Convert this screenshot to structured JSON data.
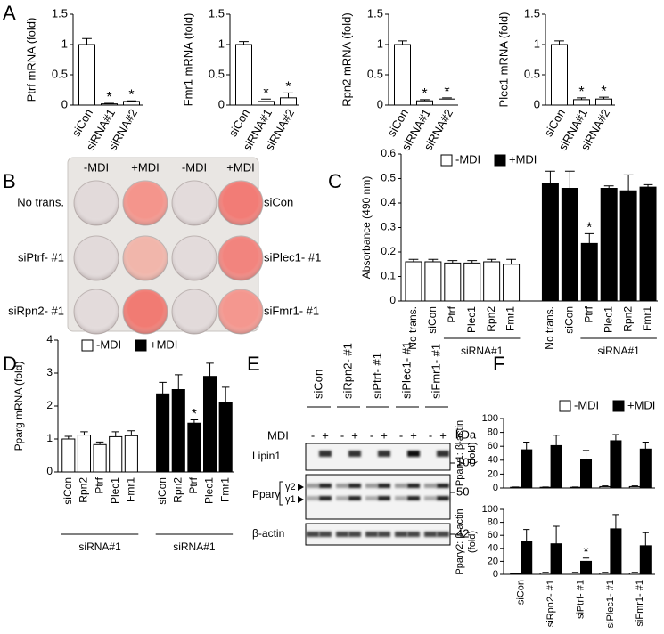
{
  "panel_labels": [
    "A",
    "B",
    "C",
    "D",
    "E",
    "F"
  ],
  "chart_data": [
    {
      "type": "bar",
      "ylabel": "Ptrf mRNA (fold)",
      "categories": [
        "siCon",
        "siRNA#1",
        "siRNA#2"
      ],
      "series": [
        {
          "color": "#ffffff",
          "values": [
            1,
            0.02,
            0.06
          ],
          "errors": [
            0.1,
            0.01,
            0.01
          ],
          "annotations": [
            null,
            "*",
            "*"
          ]
        }
      ],
      "ylim": [
        0,
        1.5
      ],
      "yticks": [
        0,
        0.5,
        1,
        1.5
      ]
    },
    {
      "type": "bar",
      "ylabel": "Fmr1 mRNA (fold)",
      "categories": [
        "siCon",
        "siRNA#1",
        "siRNA#2"
      ],
      "series": [
        {
          "color": "#ffffff",
          "values": [
            1,
            0.06,
            0.12
          ],
          "errors": [
            0.05,
            0.04,
            0.08
          ],
          "annotations": [
            null,
            "*",
            "*"
          ]
        }
      ],
      "ylim": [
        0,
        1.5
      ],
      "yticks": [
        0,
        0.5,
        1,
        1.5
      ]
    },
    {
      "type": "bar",
      "ylabel": "Rpn2 mRNA (fold)",
      "categories": [
        "siCon",
        "siRNA#1",
        "siRNA#2"
      ],
      "series": [
        {
          "color": "#ffffff",
          "values": [
            1,
            0.07,
            0.1
          ],
          "errors": [
            0.06,
            0.02,
            0.02
          ],
          "annotations": [
            null,
            "*",
            "*"
          ]
        }
      ],
      "ylim": [
        0,
        1.5
      ],
      "yticks": [
        0,
        0.5,
        1,
        1.5
      ]
    },
    {
      "type": "bar",
      "ylabel": "Plec1 mRNA (fold)",
      "categories": [
        "siCon",
        "siRNA#1",
        "siRNA#2"
      ],
      "series": [
        {
          "color": "#ffffff",
          "values": [
            1,
            0.09,
            0.1
          ],
          "errors": [
            0.06,
            0.03,
            0.03
          ],
          "annotations": [
            null,
            "*",
            "*"
          ]
        }
      ],
      "ylim": [
        0,
        1.5
      ],
      "yticks": [
        0,
        0.5,
        1,
        1.5
      ]
    },
    {
      "type": "bar",
      "ylabel": "Absorbance (490 nm)",
      "categories": [
        "No trans.",
        "siCon",
        "Ptrf",
        "Plec1",
        "Rpn2",
        "Fmr1",
        "No trans.",
        "siCon",
        "Ptrf",
        "Plec1",
        "Rpn2",
        "Fmr1"
      ],
      "series": [
        {
          "name": "-MDI",
          "color": "#ffffff",
          "values": [
            0.16,
            0.16,
            0.155,
            0.155,
            0.16,
            0.15,
            null,
            null,
            null,
            null,
            null,
            null
          ],
          "errors": [
            0.01,
            0.01,
            0.01,
            0.01,
            0.01,
            0.02,
            null,
            null,
            null,
            null,
            null,
            null
          ]
        },
        {
          "name": "+MDI",
          "color": "#000000",
          "values": [
            null,
            null,
            null,
            null,
            null,
            null,
            0.48,
            0.46,
            0.235,
            0.46,
            0.45,
            0.465
          ],
          "errors": [
            null,
            null,
            null,
            null,
            null,
            null,
            0.05,
            0.07,
            0.04,
            0.01,
            0.065,
            0.01
          ],
          "annotations": [
            null,
            null,
            null,
            null,
            null,
            null,
            null,
            null,
            "*",
            null,
            null,
            null
          ]
        }
      ],
      "group_labels": [
        "siRNA#1",
        "siRNA#1"
      ],
      "ylim": [
        0,
        0.6
      ],
      "yticks": [
        0,
        0.1,
        0.2,
        0.3,
        0.4,
        0.5,
        0.6
      ]
    },
    {
      "type": "bar",
      "ylabel": "Pparg mRNA (fold)",
      "categories": [
        "siCon",
        "Rpn2",
        "Ptrf",
        "Plec1",
        "Fmr1",
        "siCon",
        "Rpn2",
        "Ptrf",
        "Plec1",
        "Fmr1"
      ],
      "series": [
        {
          "name": "-MDI",
          "color": "#ffffff",
          "values": [
            1.0,
            1.12,
            0.83,
            1.07,
            1.1,
            null,
            null,
            null,
            null,
            null
          ],
          "errors": [
            0.08,
            0.1,
            0.08,
            0.15,
            0.15,
            null,
            null,
            null,
            null,
            null
          ]
        },
        {
          "name": "+MDI",
          "color": "#000000",
          "values": [
            null,
            null,
            null,
            null,
            null,
            2.37,
            2.5,
            1.48,
            2.9,
            2.12
          ],
          "errors": [
            null,
            null,
            null,
            null,
            null,
            0.35,
            0.45,
            0.1,
            0.4,
            0.45
          ],
          "annotations": [
            null,
            null,
            null,
            null,
            null,
            null,
            null,
            "*",
            null,
            null
          ]
        }
      ],
      "group_labels": [
        "siRNA#1",
        "siRNA#1"
      ],
      "ylim": [
        0,
        4
      ],
      "yticks": [
        0,
        1,
        2,
        3,
        4
      ]
    },
    {
      "type": "bar",
      "ylabel": [
        "Pparγ1: β-actin",
        "(fold)"
      ],
      "series": [
        {
          "name": "-MDI",
          "color": "#ffffff",
          "values": [
            1,
            1,
            1,
            2,
            2
          ],
          "errors": [
            0.5,
            0.5,
            0.5,
            1,
            1
          ]
        },
        {
          "name": "+MDI",
          "color": "#000000",
          "values": [
            55,
            61,
            41,
            68,
            56
          ],
          "errors": [
            11,
            15,
            13,
            9,
            10
          ]
        }
      ],
      "ylim": [
        0,
        100
      ],
      "yticks": [
        0,
        20,
        40,
        60,
        80,
        100
      ]
    },
    {
      "type": "bar",
      "ylabel": [
        "Pparγ2: β-actin",
        "(fold)"
      ],
      "categories": [
        "siCon",
        "siRpn2- #1",
        "siPtrf- #1",
        "siPlec1- #1",
        "siFmr1- #1"
      ],
      "series": [
        {
          "color": "#ffffff",
          "values": [
            1,
            2,
            2,
            2,
            2
          ],
          "errors": [
            0.5,
            1,
            1,
            1,
            1
          ]
        },
        {
          "color": "#000000",
          "values": [
            50,
            47,
            20,
            70,
            44
          ],
          "errors": [
            19,
            27,
            5,
            22,
            20
          ],
          "annotations": [
            null,
            null,
            "*",
            null,
            null
          ]
        }
      ],
      "ylim": [
        0,
        100
      ],
      "yticks": [
        0,
        20,
        40,
        60,
        80,
        100
      ]
    }
  ],
  "plate": {
    "columns": [
      "-MDI",
      "+MDI",
      "-MDI",
      "+MDI"
    ],
    "rows_left": [
      "No trans.",
      "siPtrf- #1",
      "siRpn2- #1"
    ],
    "rows_right": [
      "siCon",
      "siPlec1- #1",
      "siFmr1- #1"
    ]
  },
  "blot": {
    "lane_groups": [
      "siCon",
      "siRpn2- #1",
      "siPtrf- #1",
      "siPlec1- #1",
      "siFmr1- #1"
    ],
    "mdi_label": "MDI",
    "mdi_signs": [
      "-",
      "+",
      "-",
      "+",
      "-",
      "+",
      "-",
      "+",
      "-",
      "+"
    ],
    "kda": "kDa",
    "rows": [
      "Lipin1",
      "Pparγ",
      "β-actin"
    ],
    "isoforms": [
      "γ2",
      "γ1"
    ],
    "markers": [
      "100",
      "50",
      "42"
    ]
  }
}
